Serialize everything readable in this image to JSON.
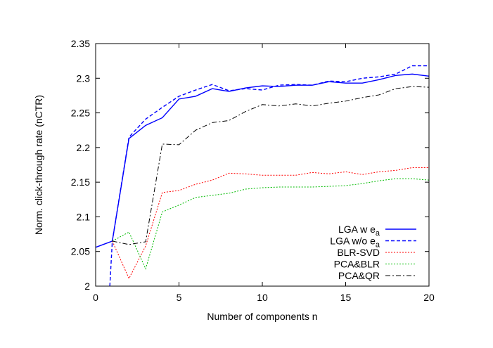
{
  "chart_data": {
    "type": "line",
    "xlabel": "Number of components n",
    "ylabel": "Norm. click-through rate (nCTR)",
    "xlim": [
      0,
      20
    ],
    "ylim": [
      2.0,
      2.35
    ],
    "xticks": [
      "0",
      "5",
      "10",
      "15",
      "20"
    ],
    "yticks": [
      "2",
      "2.05",
      "2.1",
      "2.15",
      "2.2",
      "2.25",
      "2.3",
      "2.35"
    ],
    "grid": false,
    "legend_position": "bottom-right",
    "series": [
      {
        "name": "LGA w e_a",
        "label_main": "LGA w e",
        "label_sub": "a",
        "color": "#0000ff",
        "dash": "solid",
        "x": [
          0,
          1,
          2,
          3,
          4,
          5,
          6,
          7,
          8,
          9,
          10,
          11,
          12,
          13,
          14,
          15,
          16,
          17,
          18,
          19,
          20
        ],
        "values": [
          2.056,
          2.065,
          2.213,
          2.232,
          2.243,
          2.27,
          2.274,
          2.285,
          2.281,
          2.286,
          2.289,
          2.288,
          2.29,
          2.29,
          2.295,
          2.293,
          2.293,
          2.298,
          2.304,
          2.306,
          2.303
        ]
      },
      {
        "name": "LGA w/o e_a",
        "label_main": "LGA w/o e",
        "label_sub": "a",
        "color": "#0000ff",
        "dash": "dashed",
        "x": [
          0.85,
          1,
          2,
          3,
          4,
          5,
          6,
          7,
          8,
          9,
          10,
          11,
          12,
          13,
          14,
          15,
          16,
          17,
          18,
          19,
          20
        ],
        "values": [
          2.0,
          2.065,
          2.215,
          2.241,
          2.258,
          2.274,
          2.283,
          2.291,
          2.282,
          2.285,
          2.283,
          2.29,
          2.291,
          2.29,
          2.296,
          2.295,
          2.3,
          2.302,
          2.306,
          2.318,
          2.318
        ]
      },
      {
        "name": "BLR-SVD",
        "label_main": "BLR-SVD",
        "label_sub": "",
        "color": "#ff0000",
        "dash": "dotted",
        "x": [
          1,
          2,
          3,
          4,
          5,
          6,
          7,
          8,
          9,
          10,
          11,
          12,
          13,
          14,
          15,
          16,
          17,
          18,
          19,
          20
        ],
        "values": [
          2.065,
          2.011,
          2.058,
          2.135,
          2.138,
          2.147,
          2.153,
          2.163,
          2.162,
          2.16,
          2.16,
          2.16,
          2.164,
          2.162,
          2.165,
          2.161,
          2.165,
          2.167,
          2.171,
          2.171
        ]
      },
      {
        "name": "PCA&BLR",
        "label_main": "PCA&BLR",
        "label_sub": "",
        "color": "#00bb00",
        "dash": "dotted",
        "x": [
          1,
          2,
          3,
          4,
          5,
          6,
          7,
          8,
          9,
          10,
          11,
          12,
          13,
          14,
          15,
          16,
          17,
          18,
          19,
          20
        ],
        "values": [
          2.065,
          2.078,
          2.025,
          2.107,
          2.117,
          2.128,
          2.131,
          2.134,
          2.14,
          2.142,
          2.143,
          2.143,
          2.143,
          2.144,
          2.145,
          2.148,
          2.152,
          2.155,
          2.155,
          2.153
        ]
      },
      {
        "name": "PCA&QR",
        "label_main": "PCA&QR",
        "label_sub": "",
        "color": "#000000",
        "dash": "dashdot",
        "x": [
          1,
          2,
          3,
          4,
          5,
          6,
          7,
          8,
          9,
          10,
          11,
          12,
          13,
          14,
          15,
          16,
          17,
          18,
          19,
          20
        ],
        "values": [
          2.065,
          2.06,
          2.064,
          2.205,
          2.204,
          2.225,
          2.236,
          2.239,
          2.252,
          2.262,
          2.26,
          2.263,
          2.26,
          2.264,
          2.267,
          2.272,
          2.276,
          2.285,
          2.288,
          2.287
        ]
      }
    ]
  }
}
